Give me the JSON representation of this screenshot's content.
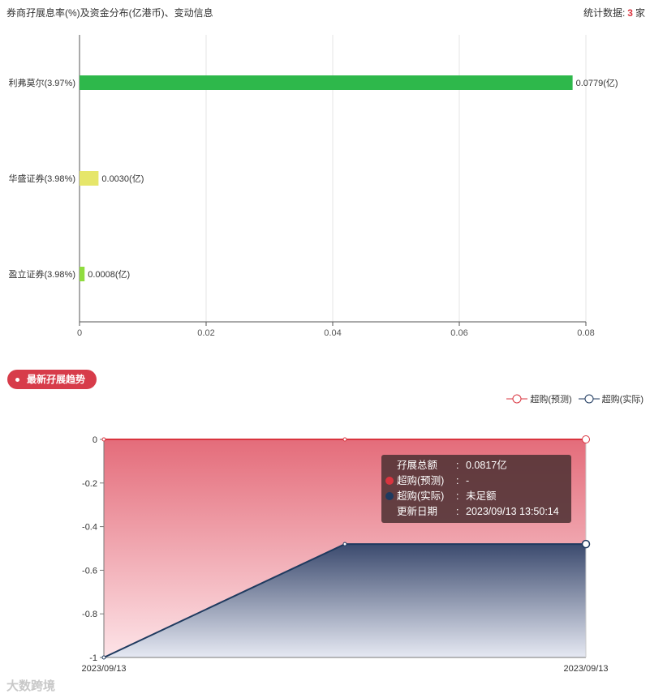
{
  "header": {
    "title": "券商孖展息率(%)及资金分布(亿港币)、变动信息",
    "stats_label": "统计数据:",
    "stats_count": "3",
    "stats_unit": "家"
  },
  "section2": {
    "pill_label": "最新孖展趋势"
  },
  "legend": [
    {
      "label": "超购(预测)",
      "color": "#d9343f"
    },
    {
      "label": "超购(实际)",
      "color": "#1f3a5f"
    }
  ],
  "tooltip": {
    "rows": [
      {
        "key": "孖展总额",
        "value": "0.0817亿",
        "dot": ""
      },
      {
        "key": "超购(预测)",
        "value": "-",
        "dot": "#d9343f"
      },
      {
        "key": "超购(实际)",
        "value": "未足额",
        "dot": "#1f3a5f"
      },
      {
        "key": "更新日期",
        "value": "2023/09/13 13:50:14",
        "dot": ""
      }
    ]
  },
  "watermark": "大数跨境",
  "chart_data": [
    {
      "type": "bar",
      "orientation": "horizontal",
      "categories": [
        "利弗莫尔(3.97%)",
        "华盛证券(3.98%)",
        "盈立证券(3.98%)"
      ],
      "values": [
        0.0779,
        0.003,
        0.0008
      ],
      "value_labels": [
        "0.0779(亿)",
        "0.0030(亿)",
        "0.0008(亿)"
      ],
      "colors": [
        "#2eb84b",
        "#e6e66a",
        "#8fdc3e"
      ],
      "xlim": [
        0,
        0.08
      ],
      "xticks": [
        "0",
        "0.02",
        "0.04",
        "0.06",
        "0.08"
      ],
      "grid": true
    },
    {
      "type": "area",
      "x": [
        "2023/09/13",
        "",
        "2023/09/13"
      ],
      "xtick_labels": [
        "2023/09/13",
        "2023/09/13"
      ],
      "series": [
        {
          "name": "超购(预测)",
          "values": [
            0,
            0,
            0
          ],
          "color": "#d9343f"
        },
        {
          "name": "超购(实际)",
          "values": [
            -1,
            -0.48,
            -0.48
          ],
          "color": "#1f3a5f"
        }
      ],
      "ylim": [
        -1,
        0
      ],
      "yticks": [
        "0",
        "-0.2",
        "-0.4",
        "-0.6",
        "-0.8",
        "-1"
      ],
      "grid": true
    }
  ]
}
